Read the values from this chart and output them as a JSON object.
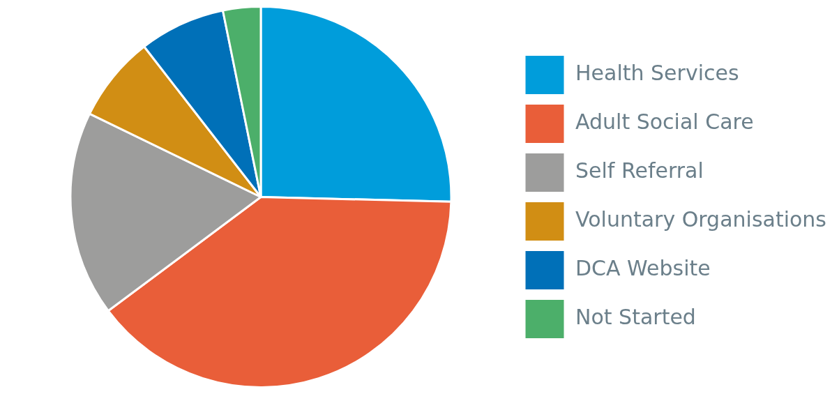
{
  "chart_data": {
    "type": "pie",
    "categories": [
      "Health Services",
      "Adult Social Care",
      "Self Referral",
      "Voluntary Organisations",
      "DCA Website",
      "Not Started"
    ],
    "values": [
      25.4,
      39.4,
      17.4,
      7.3,
      7.3,
      3.2
    ],
    "colors": [
      "#009ddb",
      "#e95e39",
      "#9d9d9c",
      "#d18e14",
      "#0070b8",
      "#4caf6a"
    ],
    "legend": "right"
  }
}
